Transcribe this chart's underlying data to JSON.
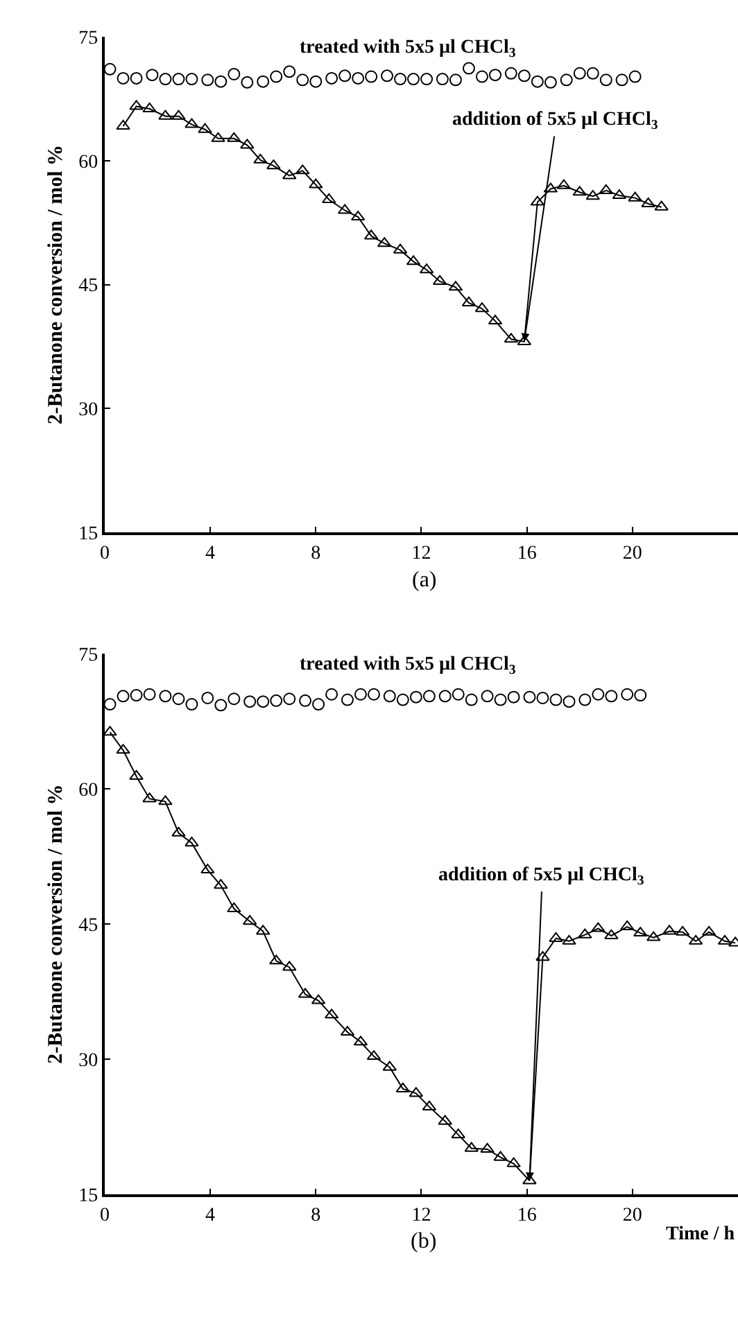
{
  "chart_data": [
    {
      "type": "line",
      "title": "(a)",
      "ylabel": "2-Butanone conversion / mol %",
      "xlim": [
        0,
        24
      ],
      "ylim": [
        15,
        75
      ],
      "xticks": [
        0,
        4,
        8,
        12,
        16,
        20
      ],
      "yticks": [
        15,
        30,
        45,
        60,
        75
      ],
      "annotations": [
        "treated with 5x5 µl CHCl$_{3}$",
        {
          "text": "addition of 5x5 µl CHCl$_{3}$",
          "x": 15.9,
          "y": 38.1
        }
      ],
      "series": [
        {
          "type": "scatter",
          "marker": "circle",
          "color": "#000000",
          "x": [
            0.2,
            0.7,
            1.2,
            1.8,
            2.3,
            2.8,
            3.3,
            3.9,
            4.4,
            4.9,
            5.4,
            6.0,
            6.5,
            7.0,
            7.5,
            8.0,
            8.6,
            9.1,
            9.6,
            10.1,
            10.7,
            11.2,
            11.7,
            12.2,
            12.8,
            13.3,
            13.8,
            14.3,
            14.8,
            15.4,
            15.9,
            16.4,
            16.9,
            17.5,
            18.0,
            18.5,
            19.0,
            19.6,
            20.1
          ],
          "values": [
            71.1,
            70.0,
            70.0,
            70.4,
            69.9,
            69.9,
            69.9,
            69.8,
            69.6,
            70.5,
            69.5,
            69.6,
            70.2,
            70.8,
            69.8,
            69.6,
            70.0,
            70.3,
            70.0,
            70.2,
            70.3,
            69.9,
            69.9,
            69.9,
            69.9,
            69.8,
            71.2,
            70.2,
            70.4,
            70.6,
            70.3,
            69.6,
            69.5,
            69.8,
            70.6,
            70.6,
            69.8,
            69.8,
            70.2
          ]
        },
        {
          "marker": "triangle",
          "line_style": "solid",
          "color": "#000000",
          "x": [
            0.7,
            1.2,
            1.7,
            2.3,
            2.8,
            3.3,
            3.8,
            4.3,
            4.9,
            5.4,
            5.9,
            6.4,
            7.0,
            7.5,
            8.0,
            8.5,
            9.1,
            9.6,
            10.1,
            10.6,
            11.2,
            11.7,
            12.2,
            12.7,
            13.3,
            13.8,
            14.3,
            14.8,
            15.4,
            15.9,
            16.4,
            16.9,
            17.4,
            18.0,
            18.5,
            19.0,
            19.5,
            20.1,
            20.6,
            21.1
          ],
          "values": [
            64.2,
            66.6,
            66.3,
            65.4,
            65.4,
            64.4,
            63.8,
            62.7,
            62.7,
            61.9,
            60.1,
            59.4,
            58.2,
            58.8,
            57.1,
            55.3,
            54.0,
            53.2,
            50.9,
            50.0,
            49.2,
            47.8,
            46.8,
            45.4,
            44.7,
            42.8,
            42.1,
            40.6,
            38.4,
            38.1,
            55.0,
            56.6,
            57.0,
            56.2,
            55.7,
            56.4,
            55.8,
            55.5,
            54.8,
            54.4
          ]
        }
      ]
    },
    {
      "type": "line",
      "title": "(b)",
      "xlabel": "Time / h",
      "ylabel": "2-Butanone conversion / mol %",
      "xlim": [
        0,
        24
      ],
      "ylim": [
        15,
        75
      ],
      "xticks": [
        0,
        4,
        8,
        12,
        16,
        20
      ],
      "yticks": [
        15,
        30,
        45,
        60,
        75
      ],
      "annotations": [
        "treated with 5x5 µl CHCl$_{3}$",
        {
          "text": "addition of 5x5 µl CHCl$_{3}$",
          "x": 16.1,
          "y": 16.5
        }
      ],
      "series": [
        {
          "type": "scatter",
          "marker": "circle",
          "color": "#000000",
          "x": [
            0.2,
            0.7,
            1.2,
            1.7,
            2.3,
            2.8,
            3.3,
            3.9,
            4.4,
            4.9,
            5.5,
            6.0,
            6.5,
            7.0,
            7.6,
            8.1,
            8.6,
            9.2,
            9.7,
            10.2,
            10.8,
            11.3,
            11.8,
            12.3,
            12.9,
            13.4,
            13.9,
            14.5,
            15.0,
            15.5,
            16.1,
            16.6,
            17.1,
            17.6,
            18.2,
            18.7,
            19.2,
            19.8,
            20.3
          ],
          "values": [
            69.4,
            70.3,
            70.4,
            70.5,
            70.3,
            70.0,
            69.4,
            70.1,
            69.3,
            70.0,
            69.7,
            69.7,
            69.8,
            70.0,
            69.8,
            69.4,
            70.5,
            69.9,
            70.5,
            70.5,
            70.3,
            69.9,
            70.2,
            70.3,
            70.3,
            70.5,
            69.9,
            70.3,
            69.9,
            70.2,
            70.2,
            70.1,
            69.9,
            69.7,
            69.9,
            70.5,
            70.3,
            70.5,
            70.4
          ]
        },
        {
          "marker": "triangle",
          "line_style": "solid",
          "color": "#000000",
          "x": [
            0.2,
            0.7,
            1.2,
            1.7,
            2.3,
            2.8,
            3.3,
            3.9,
            4.4,
            4.9,
            5.5,
            6.0,
            6.5,
            7.0,
            7.6,
            8.1,
            8.6,
            9.2,
            9.7,
            10.2,
            10.8,
            11.3,
            11.8,
            12.3,
            12.9,
            13.4,
            13.9,
            14.5,
            15.0,
            15.5,
            16.1,
            16.6,
            17.1,
            17.6,
            18.2,
            18.7,
            19.2,
            19.8,
            20.3,
            20.8,
            21.4,
            21.9,
            22.4,
            22.9,
            23.5,
            23.9
          ],
          "values": [
            66.3,
            64.3,
            61.4,
            58.9,
            58.6,
            55.1,
            54.0,
            51.0,
            49.3,
            46.7,
            45.3,
            44.2,
            40.9,
            40.2,
            37.2,
            36.5,
            34.9,
            33.0,
            31.9,
            30.3,
            29.1,
            26.7,
            26.2,
            24.7,
            23.1,
            21.6,
            20.1,
            20.0,
            19.1,
            18.4,
            16.5,
            41.3,
            43.4,
            43.1,
            43.8,
            44.5,
            43.7,
            44.7,
            44.0,
            43.5,
            44.2,
            44.1,
            43.1,
            44.1,
            43.1,
            42.9
          ]
        }
      ]
    }
  ]
}
